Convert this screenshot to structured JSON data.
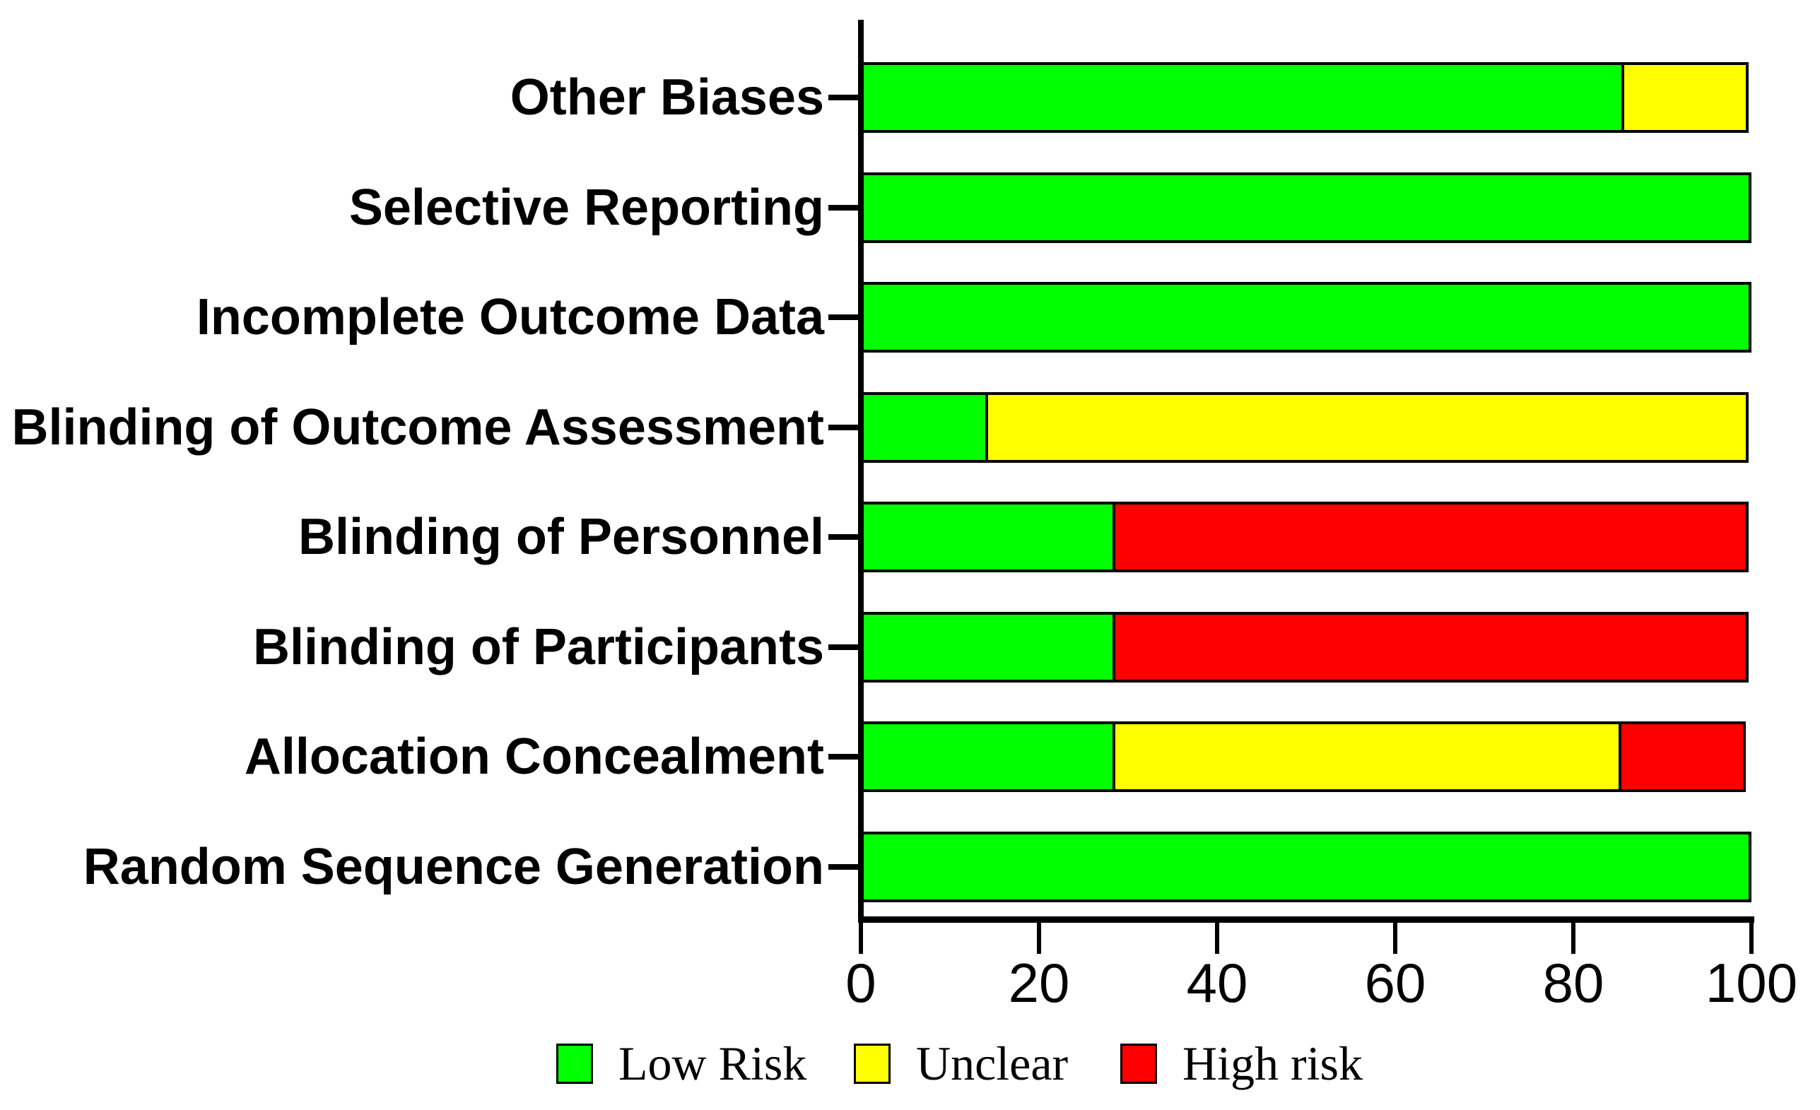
{
  "chart_data": {
    "type": "bar",
    "orientation": "horizontal",
    "stacked": true,
    "title": "",
    "xlabel": "",
    "ylabel": "",
    "categories": [
      "Other Biases",
      "Selective Reporting",
      "Incomplete Outcome Data",
      "Blinding of Outcome Assessment",
      "Blinding of Personnel",
      "Blinding of Participants",
      "Allocation Concealment",
      "Random Sequence Generation"
    ],
    "series": [
      {
        "name": "Low Risk",
        "color": "#00FF00",
        "values": [
          85.7,
          100,
          100,
          14.3,
          28.6,
          28.6,
          28.6,
          100
        ]
      },
      {
        "name": "Unclear",
        "color": "#FFFF00",
        "values": [
          14.3,
          0,
          0,
          85.7,
          0,
          0,
          57.1,
          0
        ]
      },
      {
        "name": "High risk",
        "color": "#FF0000",
        "values": [
          0,
          0,
          0,
          0,
          71.4,
          71.4,
          14.3,
          0
        ]
      }
    ],
    "xlim": [
      0,
      100
    ],
    "x_ticks": [
      0,
      20,
      40,
      60,
      80,
      100
    ],
    "grid": false,
    "legend_position": "bottom",
    "legend": [
      {
        "label": "Low Risk",
        "color": "#00FF00"
      },
      {
        "label": "Unclear",
        "color": "#FFFF00"
      },
      {
        "label": "High risk",
        "color": "#FF0000"
      }
    ]
  },
  "colors": {
    "background": "#FFFFFF",
    "axis": "#000000",
    "bar_border": "#000000",
    "text": "#000000"
  }
}
